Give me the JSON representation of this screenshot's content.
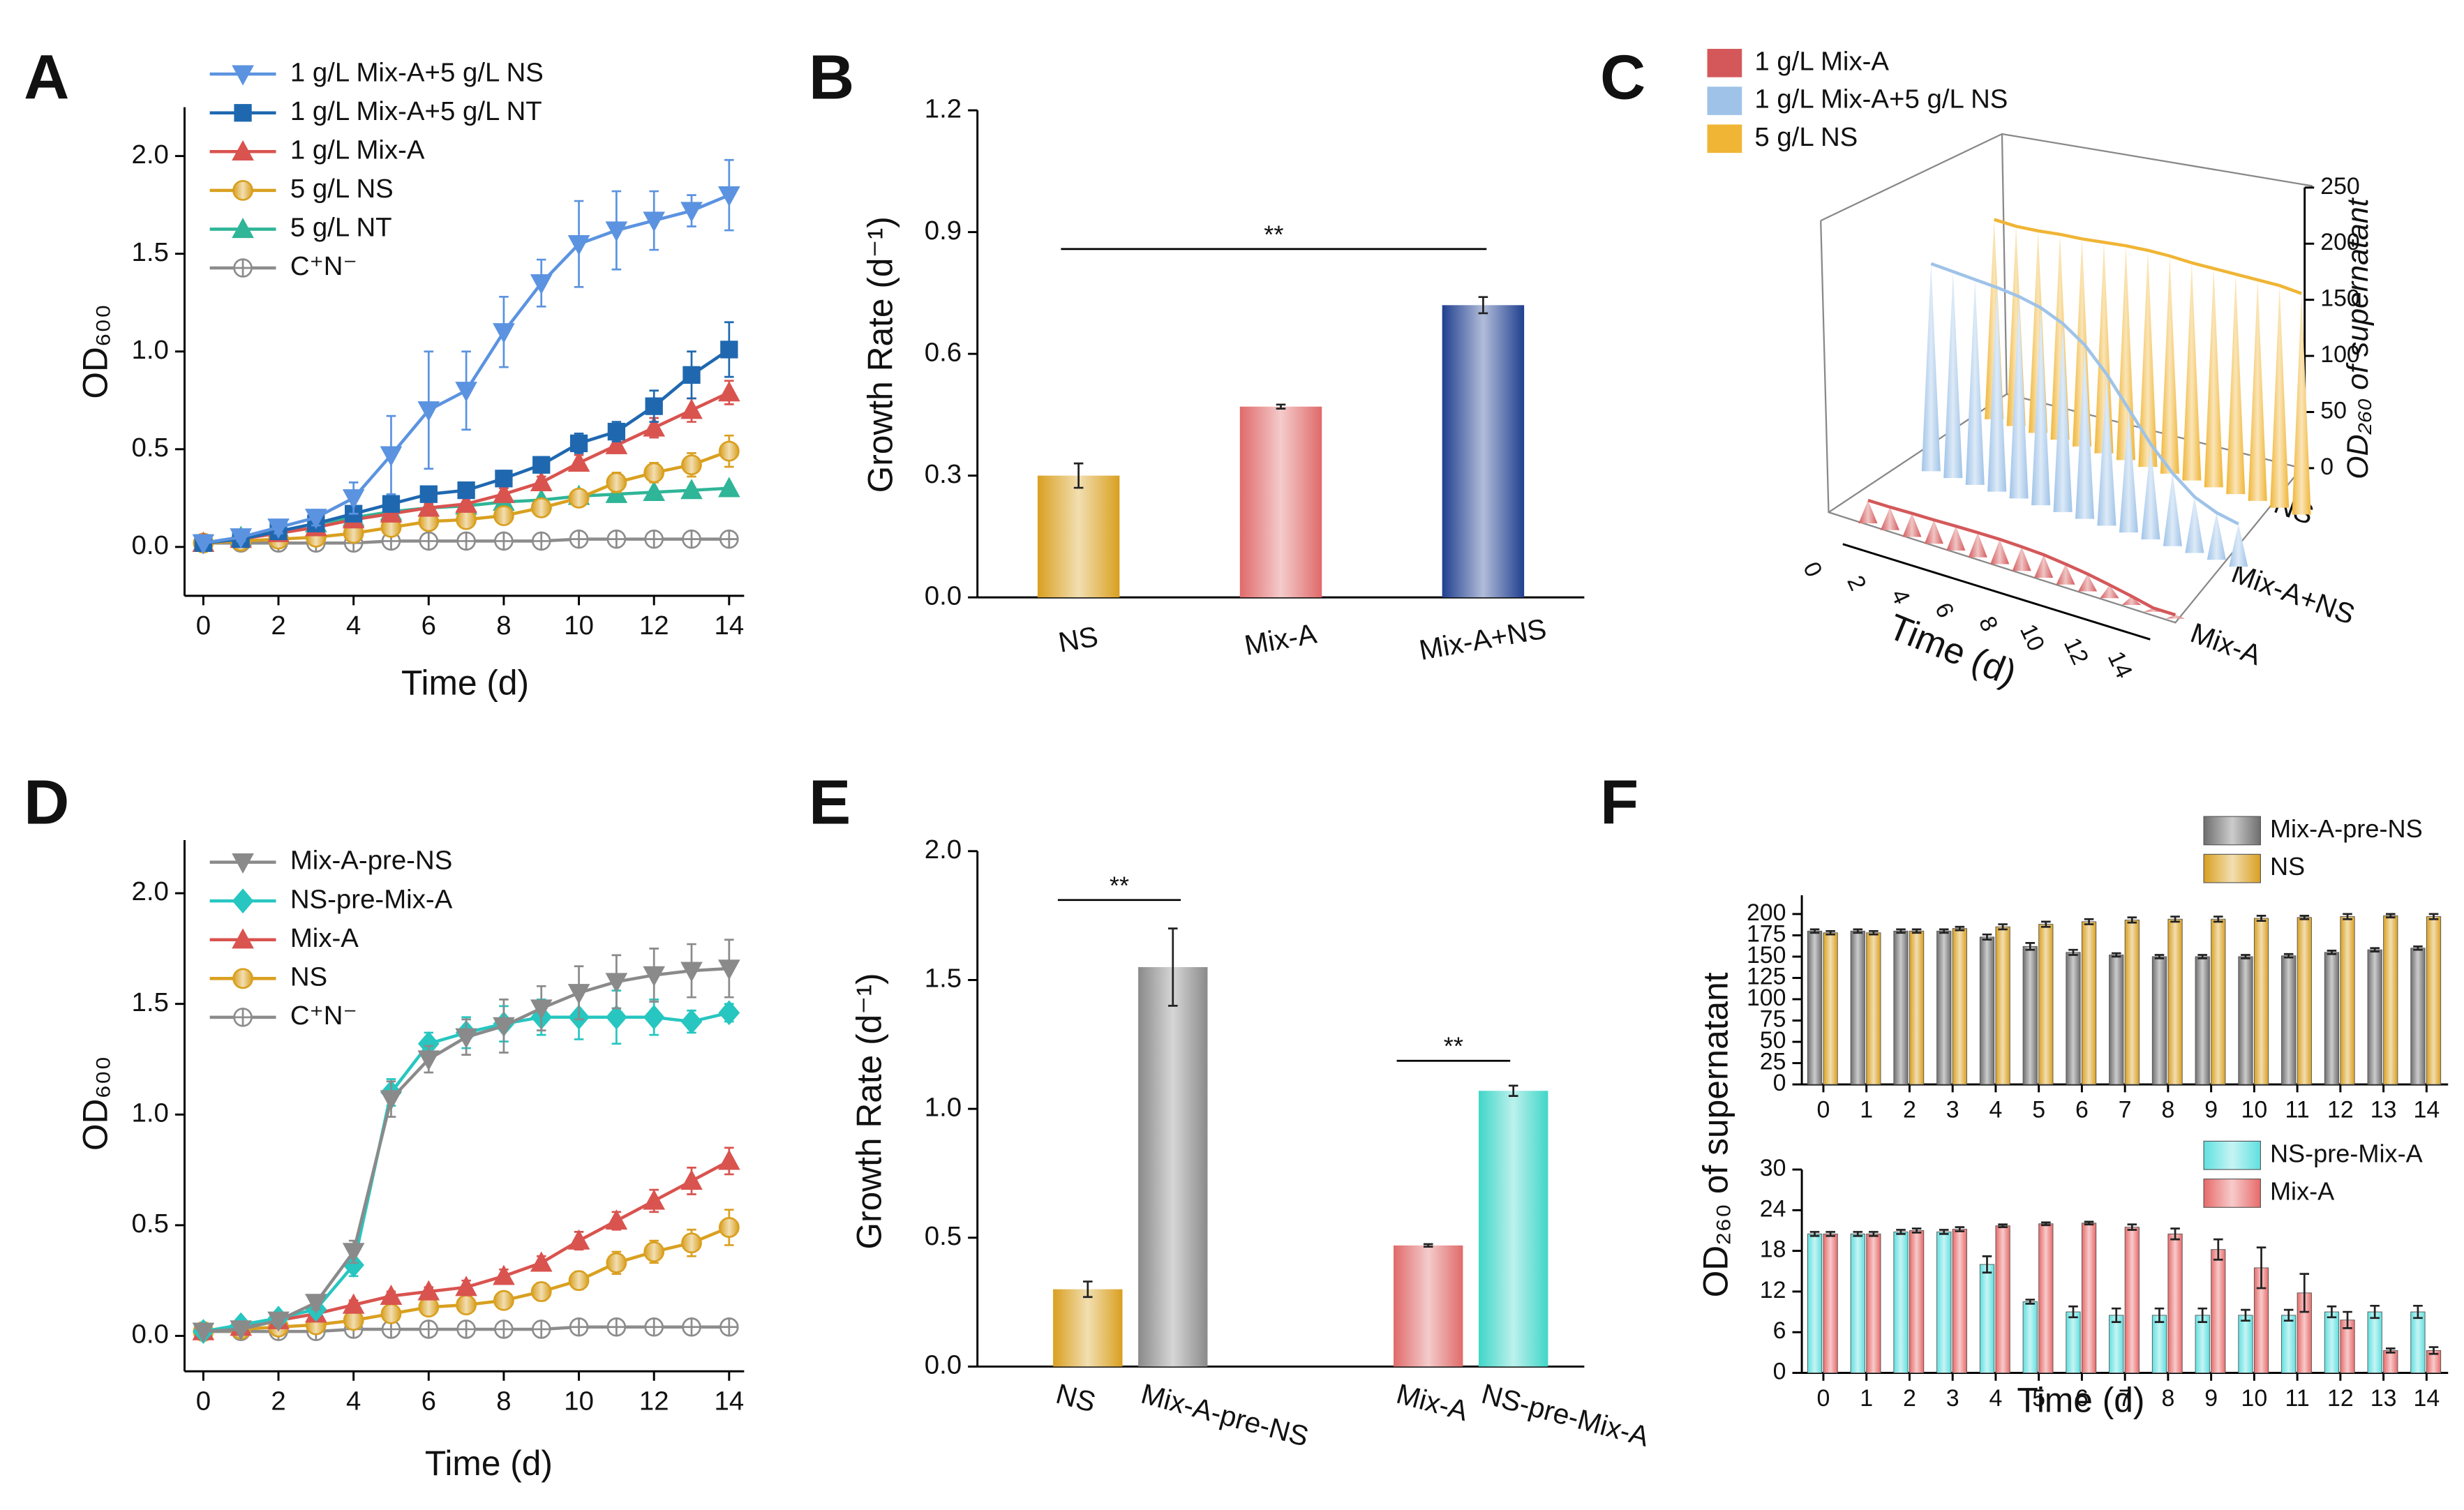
{
  "chart_data": [
    {
      "type": "line",
      "panel_label": "A",
      "x_label": "Time (d)",
      "y_label": "OD₆₀₀",
      "x": [
        0,
        1,
        2,
        3,
        4,
        5,
        6,
        7,
        8,
        9,
        10,
        11,
        12,
        13,
        14
      ],
      "xlim": [
        -0.5,
        14.4
      ],
      "xticks": [
        0,
        2,
        4,
        6,
        8,
        10,
        12,
        14
      ],
      "ylim": [
        -0.25,
        2.25
      ],
      "yticks": [
        {
          "value": 0,
          "label": "0.0"
        },
        {
          "value": 0.5,
          "label": "0.5"
        },
        {
          "value": 1,
          "label": "1.0"
        },
        {
          "value": 1.5,
          "label": "1.5"
        },
        {
          "value": 2,
          "label": "2.0"
        }
      ],
      "legend": "top-left",
      "series": [
        {
          "name": "1 g/L Mix-A+5 g/L NS",
          "color": "#5b93e0",
          "marker": "triangle-down",
          "values": [
            0.02,
            0.05,
            0.1,
            0.15,
            0.25,
            0.47,
            0.7,
            0.8,
            1.1,
            1.35,
            1.55,
            1.62,
            1.67,
            1.72,
            1.8
          ],
          "errors": [
            0.01,
            0.02,
            0.03,
            0.04,
            0.08,
            0.2,
            0.3,
            0.2,
            0.18,
            0.12,
            0.22,
            0.2,
            0.15,
            0.08,
            0.18
          ]
        },
        {
          "name": "1 g/L Mix-A+5 g/L NT",
          "color": "#1f68b0",
          "marker": "square",
          "values": [
            0.02,
            0.04,
            0.08,
            0.12,
            0.17,
            0.22,
            0.27,
            0.29,
            0.35,
            0.42,
            0.53,
            0.59,
            0.72,
            0.88,
            1.01
          ],
          "errors": [
            0.01,
            0.01,
            0.02,
            0.02,
            0.03,
            0.04,
            0.03,
            0.03,
            0.04,
            0.04,
            0.05,
            0.05,
            0.08,
            0.12,
            0.14
          ]
        },
        {
          "name": "1 g/L Mix-A",
          "color": "#d9534f",
          "marker": "triangle-up",
          "values": [
            0.02,
            0.04,
            0.07,
            0.1,
            0.14,
            0.17,
            0.2,
            0.22,
            0.27,
            0.33,
            0.43,
            0.52,
            0.61,
            0.7,
            0.79
          ],
          "errors": [
            0.01,
            0.01,
            0.01,
            0.02,
            0.02,
            0.02,
            0.02,
            0.03,
            0.03,
            0.03,
            0.04,
            0.04,
            0.05,
            0.06,
            0.06
          ]
        },
        {
          "name": "5 g/L NS",
          "color": "#d9a020",
          "marker": "circle",
          "values": [
            0.02,
            0.03,
            0.04,
            0.05,
            0.07,
            0.1,
            0.13,
            0.14,
            0.16,
            0.2,
            0.25,
            0.33,
            0.38,
            0.42,
            0.49
          ],
          "errors": [
            0.01,
            0.01,
            0.01,
            0.01,
            0.02,
            0.02,
            0.03,
            0.03,
            0.03,
            0.04,
            0.04,
            0.05,
            0.05,
            0.06,
            0.08
          ]
        },
        {
          "name": "5 g/L NT",
          "color": "#2fb597",
          "marker": "triangle-up",
          "values": [
            0.02,
            0.05,
            0.08,
            0.12,
            0.15,
            0.18,
            0.2,
            0.21,
            0.23,
            0.24,
            0.26,
            0.27,
            0.28,
            0.29,
            0.3
          ],
          "errors": [
            0.01,
            0.01,
            0.01,
            0.01,
            0.01,
            0.01,
            0.01,
            0.01,
            0.01,
            0.01,
            0.01,
            0.01,
            0.01,
            0.01,
            0.01
          ]
        },
        {
          "name": "C⁺N⁻",
          "color": "#8c8c8c",
          "marker": "circle-plus",
          "values": [
            0.02,
            0.02,
            0.02,
            0.02,
            0.02,
            0.03,
            0.03,
            0.03,
            0.03,
            0.03,
            0.04,
            0.04,
            0.04,
            0.04,
            0.04
          ],
          "errors": [
            0.01,
            0.01,
            0.01,
            0.01,
            0.01,
            0.01,
            0.01,
            0.01,
            0.01,
            0.01,
            0.01,
            0.01,
            0.01,
            0.01,
            0.01
          ]
        }
      ]
    },
    {
      "type": "bar",
      "panel_label": "B",
      "y_label": "Growth Rate (d⁻¹)",
      "categories": [
        "NS",
        "Mix-A",
        "Mix-A+NS"
      ],
      "values": [
        0.3,
        0.47,
        0.72
      ],
      "errors": [
        0.03,
        0.005,
        0.02
      ],
      "colors": [
        "#d9a020",
        "#e06a6a",
        "#1f3f8f"
      ],
      "ylim": [
        0,
        1.2
      ],
      "yticks": [
        {
          "value": 0,
          "label": "0.0"
        },
        {
          "value": 0.3,
          "label": "0.3"
        },
        {
          "value": 0.6,
          "label": "0.6"
        },
        {
          "value": 0.9,
          "label": "0.9"
        },
        {
          "value": 1.2,
          "label": "1.2"
        }
      ],
      "annotations": [
        "**"
      ]
    },
    {
      "type": "cone",
      "panel_label": "C",
      "x_label": "Time (d)",
      "z_label": "OD₂₆₀ of supernatant",
      "x": [
        0,
        1,
        2,
        3,
        4,
        5,
        6,
        7,
        8,
        9,
        10,
        11,
        12,
        13,
        14
      ],
      "xlim": [
        0,
        14
      ],
      "xticks": [
        0,
        2,
        4,
        6,
        8,
        10,
        12,
        14
      ],
      "zlim": [
        0,
        250
      ],
      "zticks": [
        0,
        50,
        100,
        150,
        200,
        250
      ],
      "depth_categories": [
        "Mix-A",
        "Mix-A+NS",
        "NS"
      ],
      "series": [
        {
          "name": "1 g/L Mix-A",
          "color": "#d4585a",
          "values": [
            20.5,
            20.5,
            21,
            21.2,
            21.7,
            22,
            22.1,
            21.5,
            20.5,
            18.2,
            15.5,
            11.8,
            7.8,
            3.3,
            3.3
          ]
        },
        {
          "name": "1 g/L Mix-A+5 g/L NS",
          "color": "#9fc3e8",
          "values": [
            185,
            184,
            183,
            182,
            180,
            176,
            168,
            155,
            135,
            110,
            85,
            65,
            50,
            42,
            38
          ]
        },
        {
          "name": "5 g/L NS",
          "color": "#f0b535",
          "values": [
            178,
            178,
            180,
            183,
            185,
            188,
            191,
            193,
            194,
            194,
            195,
            196,
            197,
            198,
            197
          ]
        }
      ]
    },
    {
      "type": "line",
      "panel_label": "D",
      "x_label": "Time (d)",
      "y_label": "OD₆₀₀",
      "x": [
        0,
        1,
        2,
        3,
        4,
        5,
        6,
        7,
        8,
        9,
        10,
        11,
        12,
        13,
        14
      ],
      "xlim": [
        -0.5,
        14.4
      ],
      "xticks": [
        0,
        2,
        4,
        6,
        8,
        10,
        12,
        14
      ],
      "ylim": [
        -0.16,
        2.24
      ],
      "yticks": [
        {
          "value": 0,
          "label": "0.0"
        },
        {
          "value": 0.5,
          "label": "0.5"
        },
        {
          "value": 1,
          "label": "1.0"
        },
        {
          "value": 1.5,
          "label": "1.5"
        },
        {
          "value": 2,
          "label": "2.0"
        }
      ],
      "legend": "top-left",
      "series": [
        {
          "name": "Mix-A-pre-NS",
          "color": "#8a8a8a",
          "marker": "triangle-down",
          "values": [
            0.02,
            0.03,
            0.07,
            0.15,
            0.38,
            1.07,
            1.25,
            1.35,
            1.4,
            1.48,
            1.55,
            1.6,
            1.63,
            1.65,
            1.66
          ],
          "errors": [
            0.01,
            0.01,
            0.02,
            0.03,
            0.05,
            0.08,
            0.06,
            0.08,
            0.12,
            0.1,
            0.12,
            0.12,
            0.12,
            0.12,
            0.13
          ]
        },
        {
          "name": "NS-pre-Mix-A",
          "color": "#27c6c0",
          "marker": "diamond",
          "values": [
            0.02,
            0.05,
            0.08,
            0.12,
            0.32,
            1.1,
            1.32,
            1.37,
            1.41,
            1.44,
            1.44,
            1.44,
            1.44,
            1.42,
            1.46
          ],
          "errors": [
            0.01,
            0.01,
            0.02,
            0.03,
            0.05,
            0.06,
            0.05,
            0.07,
            0.08,
            0.08,
            0.1,
            0.12,
            0.08,
            0.05,
            0.04
          ]
        },
        {
          "name": "Mix-A",
          "color": "#d9534f",
          "marker": "triangle-up",
          "values": [
            0.02,
            0.04,
            0.07,
            0.1,
            0.14,
            0.18,
            0.2,
            0.22,
            0.27,
            0.33,
            0.43,
            0.52,
            0.61,
            0.7,
            0.79
          ],
          "errors": [
            0.01,
            0.01,
            0.01,
            0.02,
            0.02,
            0.02,
            0.02,
            0.03,
            0.03,
            0.03,
            0.04,
            0.04,
            0.05,
            0.06,
            0.06
          ]
        },
        {
          "name": "NS",
          "color": "#d9a020",
          "marker": "circle",
          "values": [
            0.02,
            0.03,
            0.04,
            0.05,
            0.07,
            0.1,
            0.13,
            0.14,
            0.16,
            0.2,
            0.25,
            0.33,
            0.38,
            0.42,
            0.49
          ],
          "errors": [
            0.01,
            0.01,
            0.01,
            0.01,
            0.02,
            0.02,
            0.03,
            0.03,
            0.03,
            0.04,
            0.04,
            0.05,
            0.05,
            0.06,
            0.08
          ]
        },
        {
          "name": "C⁺N⁻",
          "color": "#8c8c8c",
          "marker": "circle-plus",
          "values": [
            0.02,
            0.02,
            0.02,
            0.02,
            0.03,
            0.03,
            0.03,
            0.03,
            0.03,
            0.03,
            0.04,
            0.04,
            0.04,
            0.04,
            0.04
          ],
          "errors": [
            0.01,
            0.01,
            0.01,
            0.01,
            0.01,
            0.01,
            0.01,
            0.01,
            0.01,
            0.01,
            0.01,
            0.01,
            0.01,
            0.01,
            0.01
          ]
        }
      ]
    },
    {
      "type": "bar",
      "panel_label": "E",
      "y_label": "Growth Rate (d⁻¹)",
      "categories": [
        "NS",
        "Mix-A-pre-NS",
        "Mix-A",
        "NS-pre-Mix-A"
      ],
      "values": [
        0.3,
        1.55,
        0.47,
        1.07
      ],
      "errors": [
        0.03,
        0.15,
        0.005,
        0.02
      ],
      "colors": [
        "#d9a020",
        "#8a8a8a",
        "#e06a6a",
        "#3fd6c8"
      ],
      "ylim": [
        0,
        2.0
      ],
      "yticks": [
        {
          "value": 0,
          "label": "0.0"
        },
        {
          "value": 0.5,
          "label": "0.5"
        },
        {
          "value": 1,
          "label": "1.0"
        },
        {
          "value": 1.5,
          "label": "1.5"
        },
        {
          "value": 2,
          "label": "2.0"
        }
      ],
      "annotations": [
        "**",
        "**"
      ]
    },
    {
      "type": "bar",
      "panel_label": "F",
      "y_label": "OD₂₆₀ of supernatant",
      "categories": [
        0,
        1,
        2,
        3,
        4,
        5,
        6,
        7,
        8,
        9,
        10,
        11,
        12,
        13,
        14
      ],
      "ylim": [
        0,
        222
      ],
      "yticks": [
        0,
        25,
        50,
        75,
        100,
        125,
        150,
        175,
        200
      ],
      "series": [
        {
          "name": "Mix-A-pre-NS",
          "color": "#6e6e6e",
          "values": [
            180,
            180,
            180,
            180,
            173,
            162,
            155,
            152,
            150,
            150,
            150,
            151,
            155,
            158,
            160
          ],
          "errors": [
            2,
            2,
            2,
            2,
            3,
            4,
            3,
            2,
            2,
            2,
            2,
            2,
            2,
            2,
            2
          ]
        },
        {
          "name": "NS",
          "color": "#d9a020",
          "values": [
            178,
            178,
            180,
            183,
            185,
            188,
            191,
            193,
            194,
            194,
            195,
            196,
            197,
            198,
            197
          ],
          "errors": [
            2,
            2,
            2,
            2,
            3,
            3,
            3,
            3,
            3,
            3,
            3,
            2,
            3,
            2,
            3
          ]
        }
      ]
    },
    {
      "type": "bar",
      "x_label": "Time (d)",
      "categories": [
        0,
        1,
        2,
        3,
        4,
        5,
        6,
        7,
        8,
        9,
        10,
        11,
        12,
        13,
        14
      ],
      "ylim": [
        0,
        30
      ],
      "yticks": [
        0,
        6,
        12,
        18,
        24,
        30
      ],
      "series": [
        {
          "name": "NS-pre-Mix-A",
          "color": "#5fe0e0",
          "values": [
            20.5,
            20.5,
            20.8,
            20.8,
            16,
            10.5,
            9,
            8.5,
            8.5,
            8.5,
            8.5,
            8.5,
            9,
            9,
            9
          ],
          "errors": [
            0.3,
            0.3,
            0.3,
            0.3,
            1.2,
            0.3,
            0.8,
            1,
            1,
            1,
            0.8,
            0.8,
            0.8,
            0.9,
            0.9
          ]
        },
        {
          "name": "Mix-A",
          "color": "#e86a6a",
          "values": [
            20.5,
            20.5,
            21,
            21.2,
            21.7,
            22,
            22.1,
            21.5,
            20.5,
            18.2,
            15.5,
            11.8,
            7.8,
            3.3,
            3.3
          ],
          "errors": [
            0.3,
            0.3,
            0.3,
            0.3,
            0.2,
            0.2,
            0.2,
            0.4,
            0.8,
            1.5,
            3,
            2.8,
            1.2,
            0.3,
            0.5
          ]
        }
      ]
    }
  ]
}
